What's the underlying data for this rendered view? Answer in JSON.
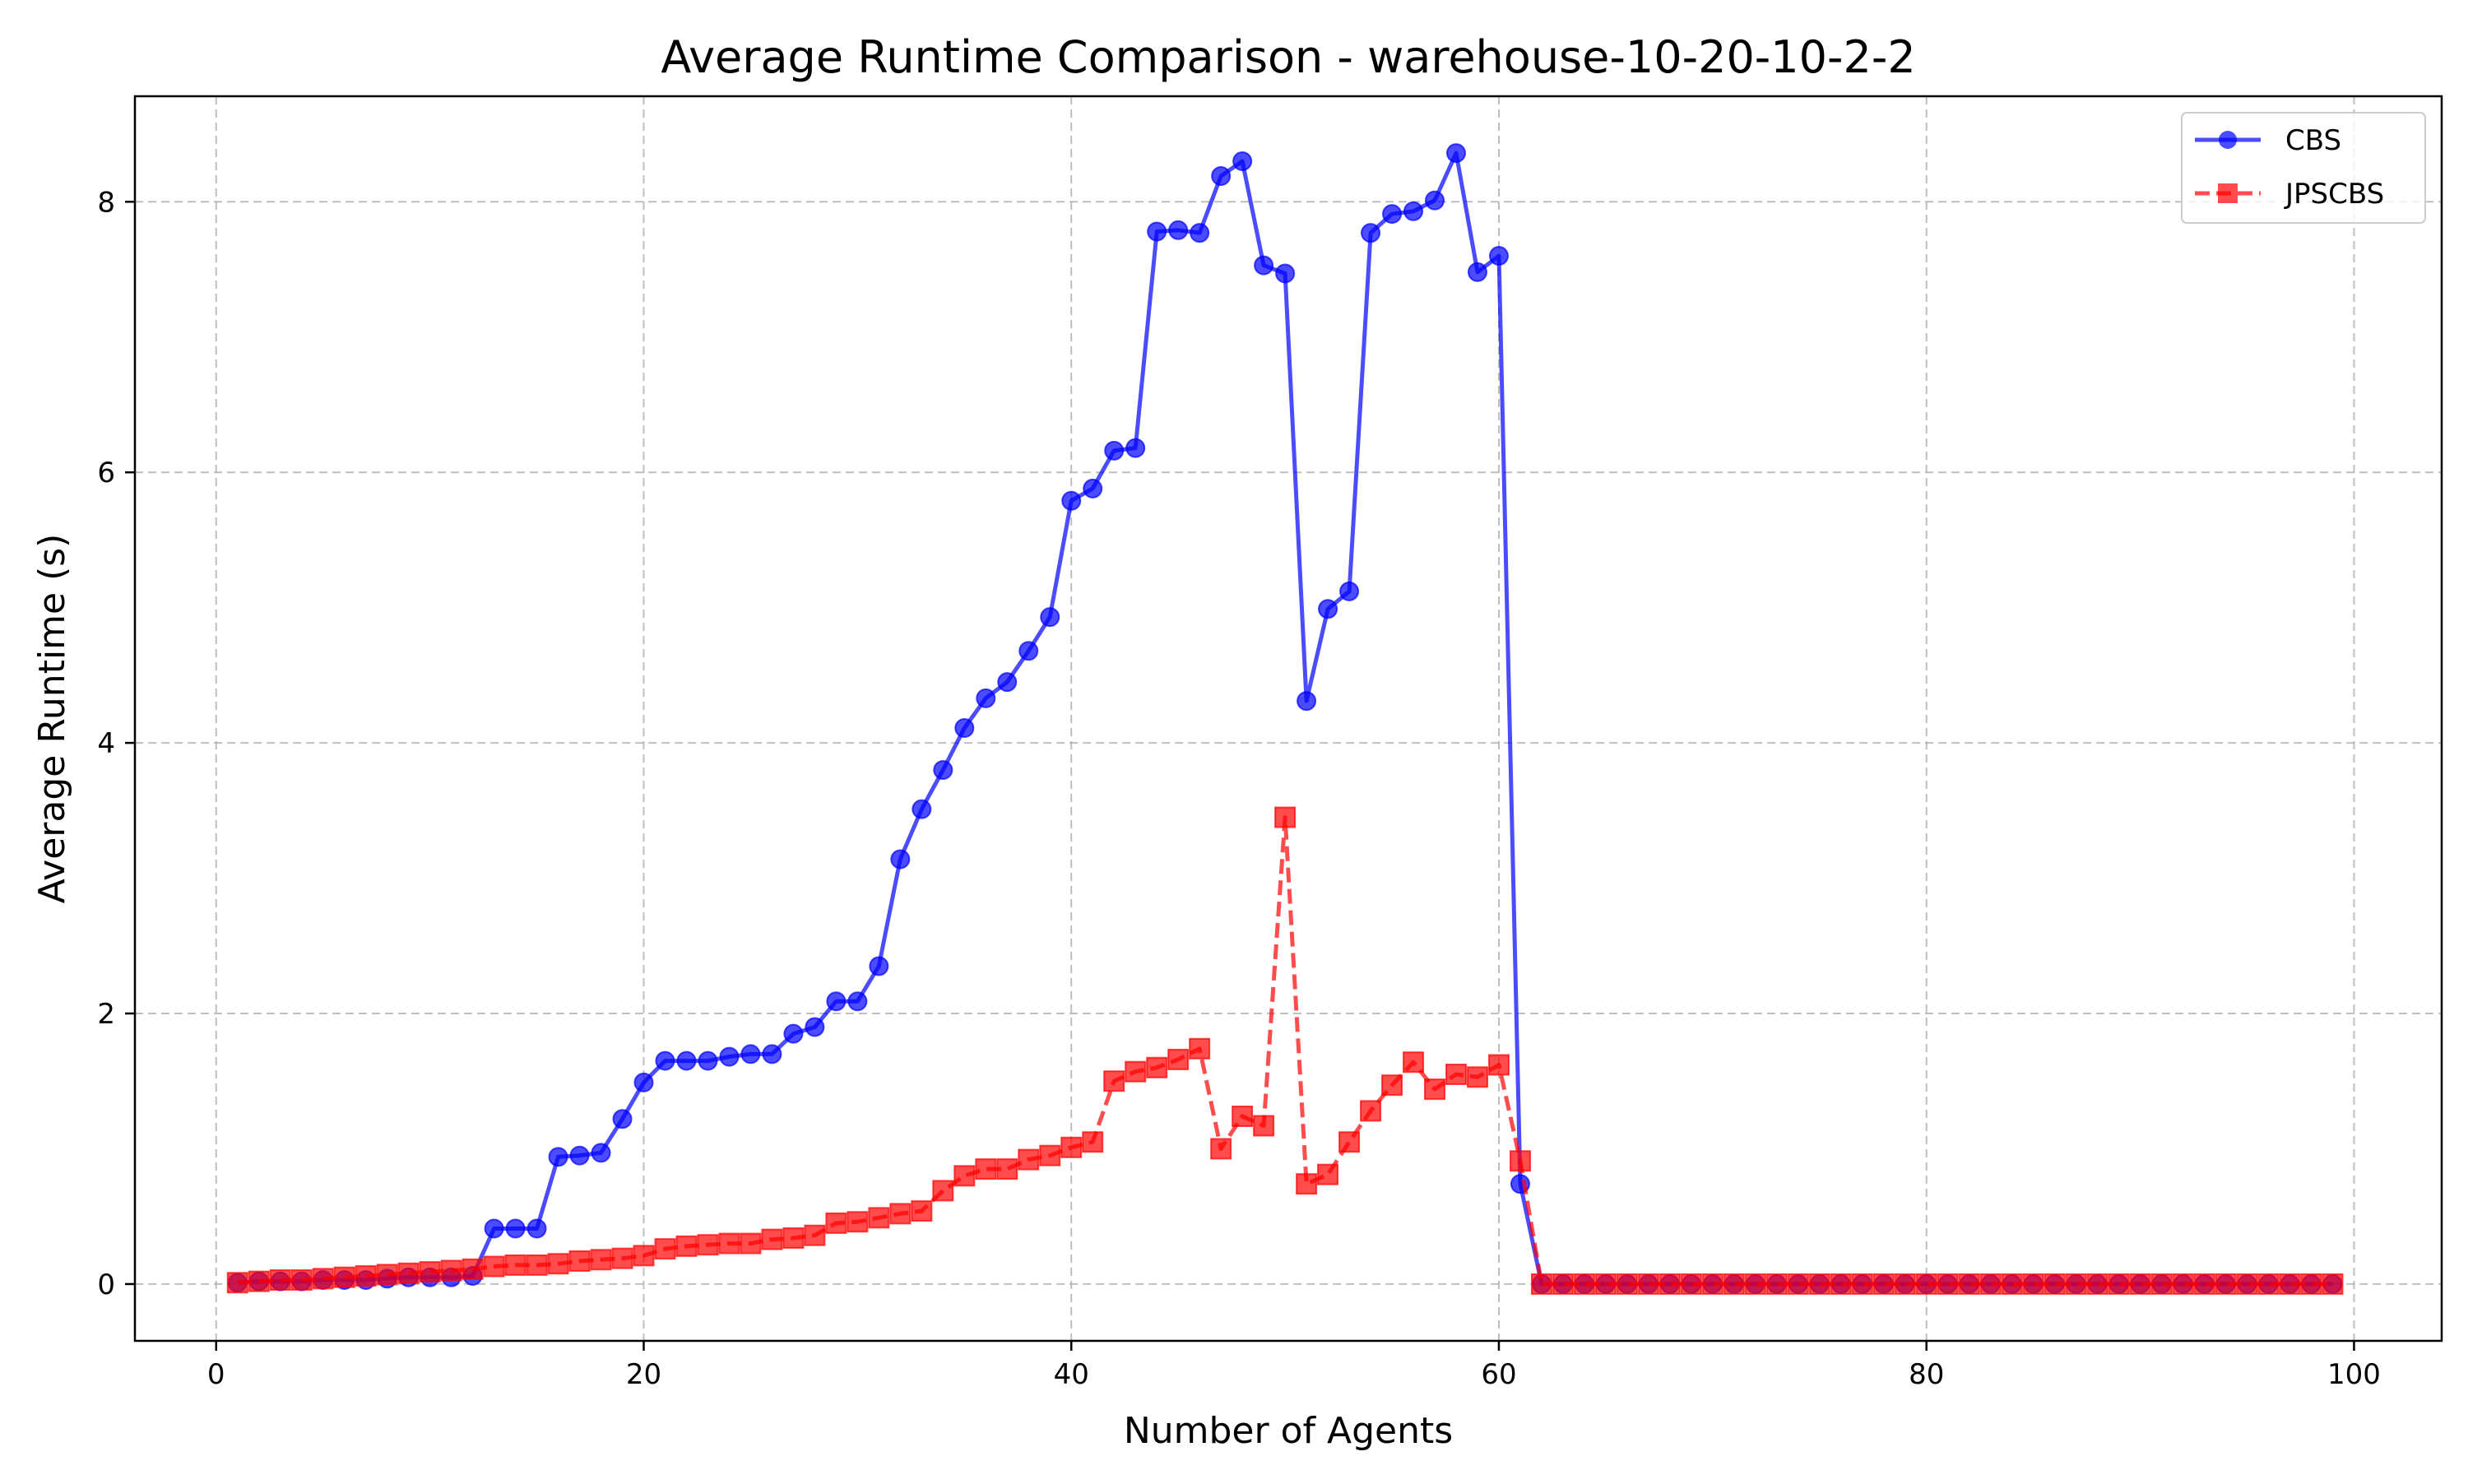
{
  "chart_data": {
    "type": "line",
    "title": "Average Runtime Comparison - warehouse-10-20-10-2-2",
    "xlabel": "Number of Agents",
    "ylabel": "Average Runtime (s)",
    "xlim": [
      -3.8,
      104.1
    ],
    "ylim": [
      -0.42,
      8.78
    ],
    "xticks": [
      0,
      20,
      40,
      60,
      80,
      100
    ],
    "yticks": [
      0,
      2,
      4,
      6,
      8
    ],
    "grid": true,
    "legend_position": "top-right",
    "x": [
      1,
      2,
      3,
      4,
      5,
      6,
      7,
      8,
      9,
      10,
      11,
      12,
      13,
      14,
      15,
      16,
      17,
      18,
      19,
      20,
      21,
      22,
      23,
      24,
      25,
      26,
      27,
      28,
      29,
      30,
      31,
      32,
      33,
      34,
      35,
      36,
      37,
      38,
      39,
      40,
      41,
      42,
      43,
      44,
      45,
      46,
      47,
      48,
      49,
      50,
      51,
      52,
      53,
      54,
      55,
      56,
      57,
      58,
      59,
      60,
      61,
      62,
      63,
      64,
      65,
      66,
      67,
      68,
      69,
      70,
      71,
      72,
      73,
      74,
      75,
      76,
      77,
      78,
      79,
      80,
      81,
      82,
      83,
      84,
      85,
      86,
      87,
      88,
      89,
      90,
      91,
      92,
      93,
      94,
      95,
      96,
      97,
      98,
      99
    ],
    "series": [
      {
        "name": "CBS",
        "color": "#0000ff",
        "linestyle": "solid",
        "marker": "circle",
        "values": [
          0.01,
          0.02,
          0.02,
          0.02,
          0.03,
          0.03,
          0.03,
          0.04,
          0.05,
          0.05,
          0.05,
          0.06,
          0.41,
          0.41,
          0.41,
          0.94,
          0.95,
          0.97,
          1.22,
          1.49,
          1.65,
          1.65,
          1.65,
          1.68,
          1.7,
          1.7,
          1.85,
          1.9,
          2.09,
          2.09,
          2.35,
          3.14,
          3.51,
          3.8,
          4.11,
          4.33,
          4.45,
          4.68,
          4.93,
          5.79,
          5.88,
          6.16,
          6.18,
          7.78,
          7.79,
          7.77,
          8.19,
          8.3,
          7.53,
          7.47,
          4.31,
          4.99,
          5.12,
          7.77,
          7.91,
          7.93,
          8.01,
          8.36,
          7.48,
          7.6,
          0.74,
          0,
          0,
          0,
          0,
          0,
          0,
          0,
          0,
          0,
          0,
          0,
          0,
          0,
          0,
          0,
          0,
          0,
          0,
          0,
          0,
          0,
          0,
          0,
          0,
          0,
          0,
          0,
          0,
          0,
          0,
          0,
          0,
          0,
          0,
          0,
          0,
          0,
          0
        ]
      },
      {
        "name": "JPSCBS",
        "color": "#ff0000",
        "linestyle": "dashed",
        "marker": "square",
        "values": [
          0.01,
          0.02,
          0.03,
          0.03,
          0.04,
          0.05,
          0.06,
          0.07,
          0.08,
          0.09,
          0.1,
          0.11,
          0.13,
          0.14,
          0.14,
          0.15,
          0.17,
          0.18,
          0.19,
          0.21,
          0.26,
          0.28,
          0.29,
          0.3,
          0.3,
          0.33,
          0.34,
          0.36,
          0.45,
          0.46,
          0.49,
          0.52,
          0.54,
          0.69,
          0.8,
          0.85,
          0.85,
          0.92,
          0.95,
          1.01,
          1.05,
          1.5,
          1.57,
          1.6,
          1.66,
          1.74,
          1.0,
          1.24,
          1.17,
          3.45,
          0.74,
          0.81,
          1.05,
          1.28,
          1.47,
          1.64,
          1.44,
          1.55,
          1.53,
          1.62,
          0.91,
          0,
          0,
          0,
          0,
          0,
          0,
          0,
          0,
          0,
          0,
          0,
          0,
          0,
          0,
          0,
          0,
          0,
          0,
          0,
          0,
          0,
          0,
          0,
          0,
          0,
          0,
          0,
          0,
          0,
          0,
          0,
          0,
          0,
          0,
          0,
          0,
          0,
          0
        ]
      }
    ]
  }
}
